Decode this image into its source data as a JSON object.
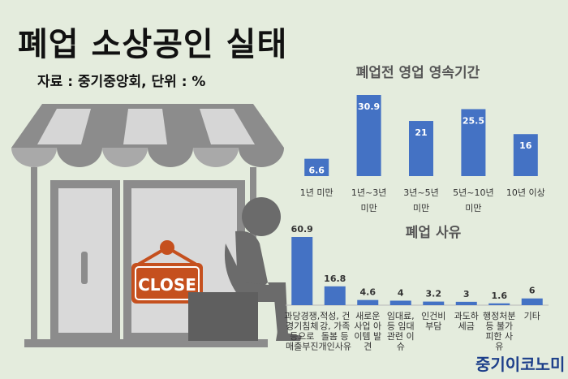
{
  "header": {
    "title": "폐업 소상공인 실태",
    "source": "자료 : 중기중앙회, 단위 : %"
  },
  "brand": "중기이코노미",
  "illustration": {
    "sign_text": "CLOSE",
    "icons": [
      "shop-awning-icon",
      "door-icon",
      "sitting-person-icon",
      "close-sign-icon"
    ]
  },
  "colors": {
    "bar": "#4472c4",
    "background": "#e4ecdd",
    "brand": "#1d3f8a",
    "sign": "#c5501e"
  },
  "chart_data": [
    {
      "type": "bar",
      "title": "폐업전 영업 영속기간",
      "categories": [
        [
          "1년 미만"
        ],
        [
          "1년~3년",
          "미만"
        ],
        [
          "3년~5년",
          "미만"
        ],
        [
          "5년~10년",
          "미만"
        ],
        [
          "10년 이상"
        ]
      ],
      "values": [
        6.6,
        30.9,
        21,
        25.5,
        16
      ],
      "labels": [
        "6.6",
        "30.9",
        "21",
        "25.5",
        "16"
      ],
      "label_position": "inside",
      "unit": "%"
    },
    {
      "type": "bar",
      "title": "폐업 사유",
      "categories": [
        [
          "과당경쟁,",
          "경기침체",
          "등으로",
          "매출부진"
        ],
        [
          "적성, 건",
          "강, 가족",
          "돌봄 등",
          "개인사유"
        ],
        [
          "새로운",
          "사업 아",
          "이템 발",
          "견"
        ],
        [
          "임대료,",
          "등 임대",
          "관련 이",
          "슈"
        ],
        [
          "인건비",
          "부담"
        ],
        [
          "과도하",
          "세금"
        ],
        [
          "행정처분",
          "등 불가",
          "피한 사",
          "유"
        ],
        [
          "기타"
        ]
      ],
      "values": [
        60.9,
        16.8,
        4.6,
        4,
        3.2,
        3,
        1.6,
        6
      ],
      "labels": [
        "60.9",
        "16.8",
        "4.6",
        "4",
        "3.2",
        "3",
        "1.6",
        "6"
      ],
      "label_position": "above",
      "unit": "%"
    }
  ]
}
